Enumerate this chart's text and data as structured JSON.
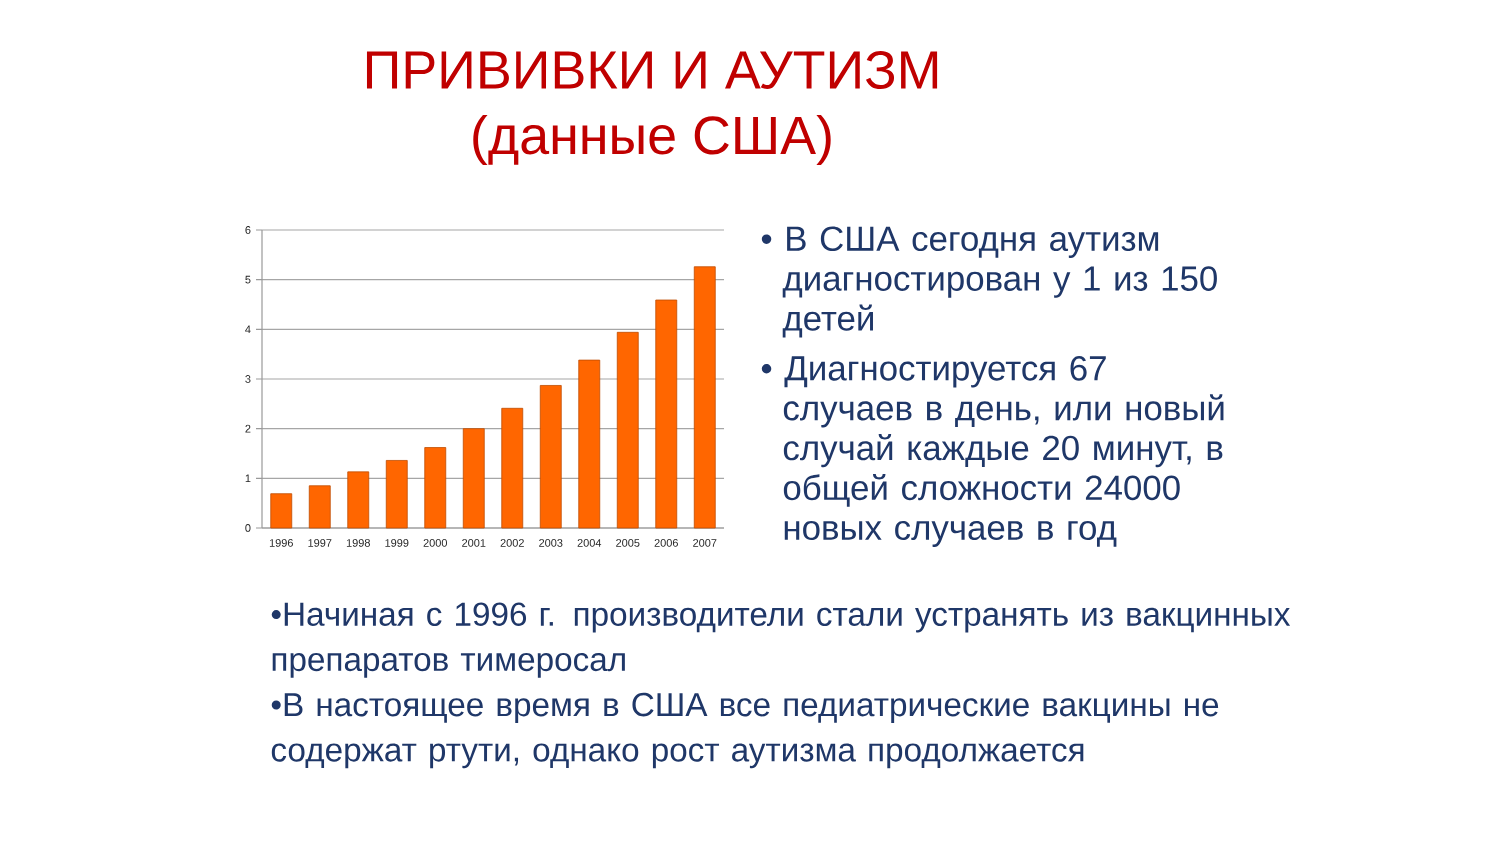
{
  "chart_data": {
    "type": "bar",
    "title": "ПРИВИВКИ И АУТИЗМ",
    "subtitle": "(данные США)",
    "categories": [
      "1996",
      "1997",
      "1998",
      "1999",
      "2000",
      "2001",
      "2002",
      "2003",
      "2004",
      "2005",
      "2006",
      "2007"
    ],
    "values": [
      0.69,
      0.85,
      1.13,
      1.36,
      1.62,
      2.0,
      2.41,
      2.87,
      3.38,
      3.94,
      4.59,
      5.26
    ],
    "color": "#ff6600",
    "ylim": [
      0,
      6
    ],
    "yticks": [
      0,
      1,
      2,
      3,
      4,
      5,
      6
    ],
    "grid": "y",
    "annotations": [
      "• В США сегодня аутизм диагностирован у 1 из 150 детей",
      "• Диагностируется 67 случаев в день, или новый случай каждые 20 минут, в общей сложности 24000 новых случаев в год",
      "•Начиная с 1996 г. производители стали устранять из вакцинных препаратов тимеросал",
      "•В настоящее время в США все педиатрические вакцины не содержат ртути, однако рост аутизма продолжается"
    ]
  }
}
